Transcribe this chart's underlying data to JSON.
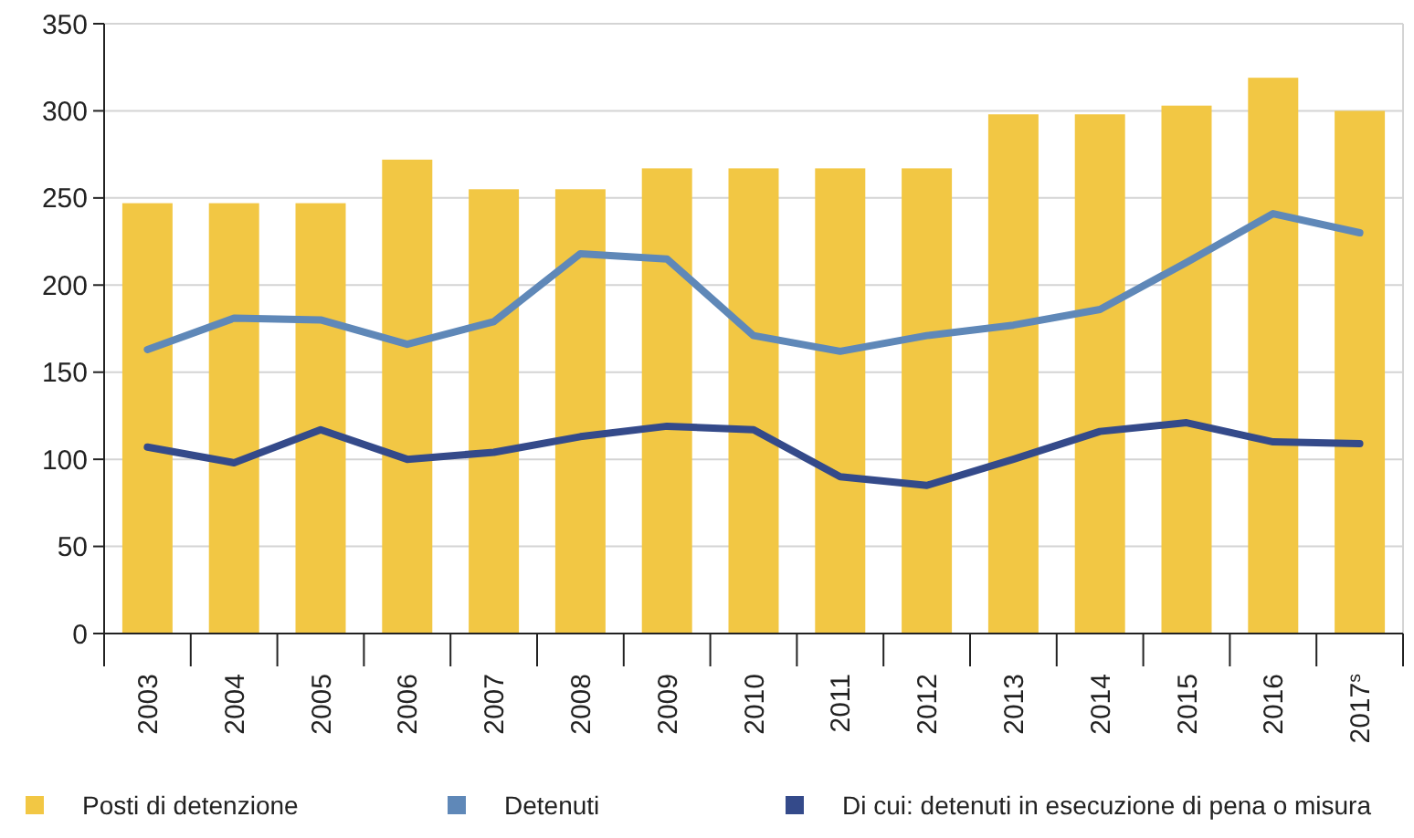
{
  "chart_data": {
    "type": "bar",
    "categories": [
      "2003",
      "2004",
      "2005",
      "2006",
      "2007",
      "2008",
      "2009",
      "2010",
      "2011",
      "2012",
      "2013",
      "2014",
      "2015",
      "2016",
      "2017$^{s}$"
    ],
    "series": [
      {
        "name": "Posti di detenzione",
        "color": "#f2c744",
        "values": [
          247,
          247,
          247,
          272,
          255,
          255,
          267,
          267,
          267,
          267,
          298,
          298,
          303,
          319,
          300
        ]
      },
      {
        "name": "Detenuti",
        "type": "line",
        "color": "#5f88b8",
        "values": [
          163,
          181,
          180,
          166,
          179,
          218,
          215,
          171,
          162,
          171,
          177,
          186,
          213,
          241,
          230
        ]
      },
      {
        "name": "Di cui: detenuti in esecuzione di pena o misura",
        "type": "line",
        "color": "#344a8a",
        "values": [
          107,
          98,
          117,
          100,
          104,
          113,
          119,
          117,
          90,
          85,
          100,
          116,
          121,
          110,
          109
        ]
      }
    ],
    "ylim": [
      0,
      350
    ],
    "yticks": [
      0,
      50,
      100,
      150,
      200,
      250,
      300,
      350
    ],
    "grid": "y",
    "legend": "bottom"
  }
}
